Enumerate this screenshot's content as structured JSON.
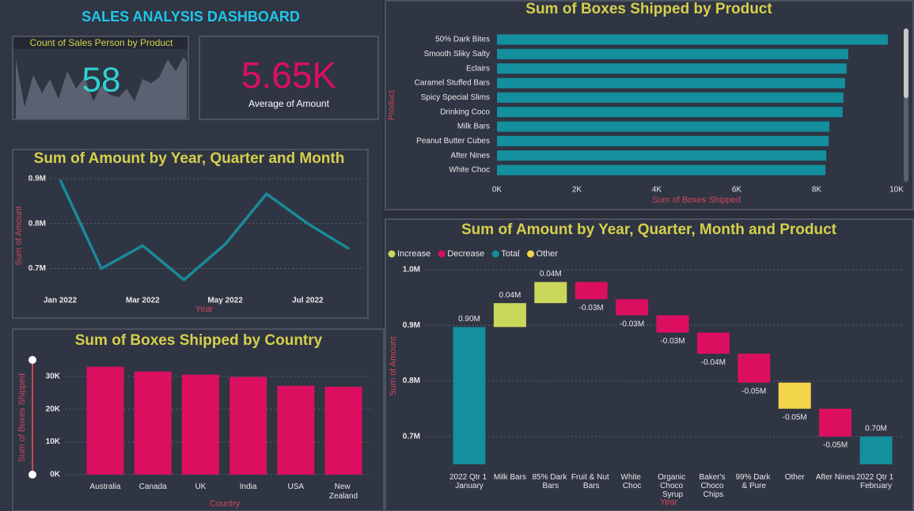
{
  "title": "SALES ANALYSIS DASHBOARD",
  "cards": [
    {
      "title": "Count of Sales Person by Product",
      "value": "58"
    },
    {
      "value": "5.65K",
      "label": "Average of Amount"
    }
  ],
  "chart_data": [
    {
      "type": "line",
      "title": "Sum of Amount by Year, Quarter and Month",
      "categories": [
        "Jan 2022",
        null,
        "Mar 2022",
        null,
        "May 2022",
        null,
        "Jul 2022",
        null
      ],
      "values": [
        0.897,
        0.7,
        0.751,
        0.675,
        0.754,
        0.866,
        0.8,
        0.744
      ],
      "color": "#1a8a9a",
      "xlabel": "Year",
      "ylabel": "Sum of Amount",
      "ylim": [
        0.65,
        0.91
      ],
      "yticks": [
        {
          "value": 0.7,
          "label": "0.7M"
        },
        {
          "value": 0.8,
          "label": "0.8M"
        },
        {
          "value": 0.9,
          "label": "0.9M"
        }
      ],
      "grid": true
    },
    {
      "type": "bar",
      "horizontal": true,
      "title": "Sum of Boxes Shipped by Product",
      "categories": [
        "50% Dark Bites",
        "Smooth Sliky Salty",
        "Eclairs",
        "Caramel Stuffed Bars",
        "Spicy Special Slims",
        "Drinking Coco",
        "Milk Bars",
        "Peanut Butter Cubes",
        "After Nines",
        "White Choc"
      ],
      "values": [
        9780,
        8790,
        8750,
        8710,
        8670,
        8650,
        8320,
        8300,
        8240,
        8220
      ],
      "color": "#138f9e",
      "xlabel": "Sum of Boxes Shipped",
      "ylabel": "Product",
      "xlim": [
        0,
        10000
      ],
      "xticks": [
        {
          "value": 0,
          "label": "0K"
        },
        {
          "value": 2000,
          "label": "2K"
        },
        {
          "value": 4000,
          "label": "4K"
        },
        {
          "value": 6000,
          "label": "6K"
        },
        {
          "value": 8000,
          "label": "8K"
        },
        {
          "value": 10000,
          "label": "10K"
        }
      ],
      "grid": false
    },
    {
      "type": "bar",
      "horizontal": false,
      "title": "Sum of Boxes Shipped by Country",
      "categories": [
        "Australia",
        "Canada",
        "UK",
        "India",
        "USA",
        "New Zealand"
      ],
      "values": [
        32900,
        31460,
        30500,
        29800,
        27100,
        26800
      ],
      "color": "#dc0f5f",
      "xlabel": "Country",
      "ylabel": "Sum of Boxes Shipped",
      "ylim": [
        0,
        35000
      ],
      "yticks": [
        {
          "value": 0,
          "label": "0K"
        },
        {
          "value": 10000,
          "label": "10K"
        },
        {
          "value": 20000,
          "label": "20K"
        },
        {
          "value": 30000,
          "label": "30K"
        }
      ],
      "grid": true
    },
    {
      "type": "waterfall",
      "title": "Sum of Amount by Year, Quarter, Month and Product",
      "categories": [
        "2022 Qtr 1 January",
        "Milk Bars",
        "85% Dark Bars",
        "Fruit & Nut Bars",
        "White Choc",
        "Organic Choco Syrup",
        "Baker's Choco Chips",
        "99% Dark & Pure",
        "Other",
        "After Nines",
        "2022 Qtr 1 February"
      ],
      "values": [
        0.897,
        0.043,
        0.038,
        -0.031,
        -0.029,
        -0.031,
        -0.038,
        -0.052,
        -0.047,
        -0.05,
        0.7
      ],
      "value_labels": [
        "0.90M",
        "0.04M",
        "0.04M",
        "-0.03M",
        "-0.03M",
        "-0.03M",
        "-0.04M",
        "-0.05M",
        "-0.05M",
        "-0.05M",
        "0.70M"
      ],
      "legend": [
        {
          "name": "Increase",
          "color": "#c9d85a"
        },
        {
          "name": "Decrease",
          "color": "#dc0f5f"
        },
        {
          "name": "Total",
          "color": "#138f9e"
        },
        {
          "name": "Other",
          "color": "#f2d54a"
        }
      ],
      "xlabel": "Year",
      "ylabel": "Sum of Amount",
      "ylim": [
        0.65,
        1.01
      ],
      "yticks": [
        {
          "value": 0.7,
          "label": "0.7M"
        },
        {
          "value": 0.8,
          "label": "0.8M"
        },
        {
          "value": 0.9,
          "label": "0.9M"
        },
        {
          "value": 1.0,
          "label": "1.0M"
        }
      ],
      "grid": true
    }
  ]
}
